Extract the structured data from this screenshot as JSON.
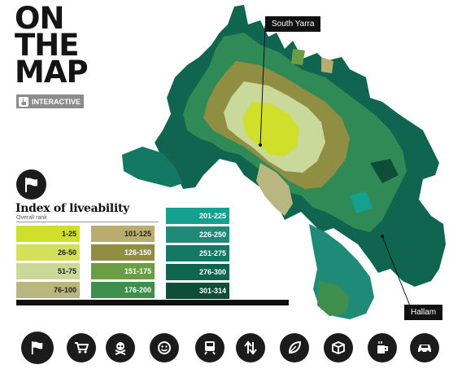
{
  "title_lines": [
    "ON",
    "THE",
    "MAP"
  ],
  "badge": {
    "label": "INTERACTIVE",
    "icon": "pointer-hand-icon"
  },
  "callouts": {
    "south_yarra": "South Yarra",
    "hallam": "Hallam"
  },
  "legend": {
    "title": "Index of liveability",
    "subtitle": "Overall rank",
    "ranges": [
      {
        "label": "1-25",
        "color": "#cfdf2a"
      },
      {
        "label": "26-50",
        "color": "#d3e15a"
      },
      {
        "label": "51-75",
        "color": "#c8d99a"
      },
      {
        "label": "76-100",
        "color": "#b9b77f"
      },
      {
        "label": "101-125",
        "color": "#b9ac6e"
      },
      {
        "label": "126-150",
        "color": "#8f8e42"
      },
      {
        "label": "151-175",
        "color": "#6b9e44"
      },
      {
        "label": "176-200",
        "color": "#3f8f4c"
      },
      {
        "label": "201-225",
        "color": "#16a08f"
      },
      {
        "label": "226-250",
        "color": "#1f8a77"
      },
      {
        "label": "251-275",
        "color": "#137864"
      },
      {
        "label": "276-300",
        "color": "#0f6550"
      },
      {
        "label": "301-314",
        "color": "#0e4e38"
      }
    ]
  },
  "icons": [
    {
      "name": "flag-icon",
      "active": true
    },
    {
      "name": "shopping-cart-icon"
    },
    {
      "name": "skull-crossbones-icon"
    },
    {
      "name": "smiley-face-icon"
    },
    {
      "name": "train-icon"
    },
    {
      "name": "up-down-arrows-icon"
    },
    {
      "name": "leaf-icon"
    },
    {
      "name": "box-icon"
    },
    {
      "name": "coffee-cup-icon"
    },
    {
      "name": "car-icon"
    }
  ]
}
